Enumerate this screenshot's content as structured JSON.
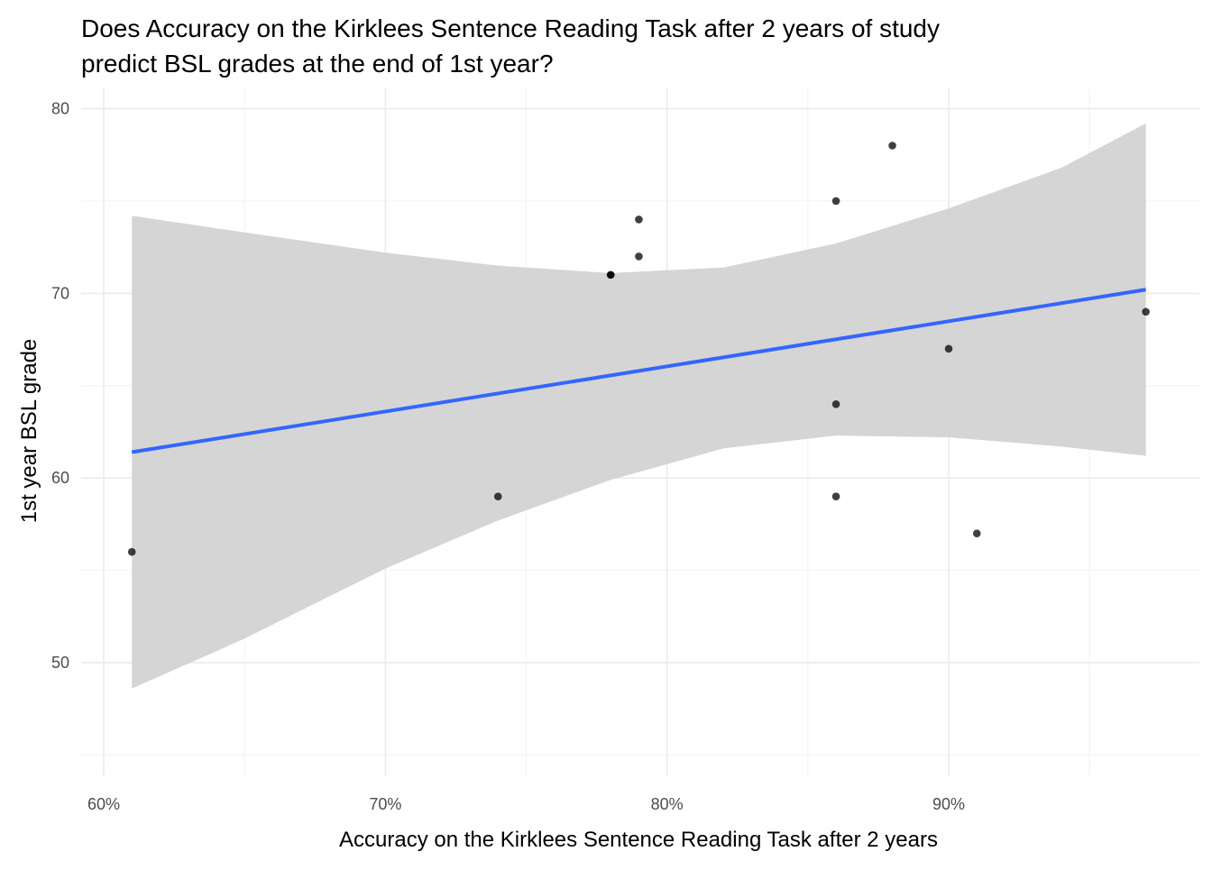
{
  "chart_data": {
    "type": "scatter",
    "title_lines": [
      "Does Accuracy on the Kirklees Sentence Reading Task after 2 years of study",
      "predict BSL grades at the end of 1st year?"
    ],
    "xlabel": "Accuracy on the Kirklees Sentence Reading Task after 2 years",
    "ylabel": "1st year BSL grade",
    "xlim": [
      0.592,
      0.989
    ],
    "ylim": [
      43.9,
      81.1
    ],
    "x_ticks": [
      {
        "value": 0.6,
        "label": "60%"
      },
      {
        "value": 0.7,
        "label": "70%"
      },
      {
        "value": 0.8,
        "label": "80%"
      },
      {
        "value": 0.9,
        "label": "90%"
      }
    ],
    "x_minor_ticks": [
      0.65,
      0.75,
      0.85,
      0.95
    ],
    "y_ticks": [
      {
        "value": 50,
        "label": "50"
      },
      {
        "value": 60,
        "label": "60"
      },
      {
        "value": 70,
        "label": "70"
      },
      {
        "value": 80,
        "label": "80"
      }
    ],
    "y_minor_ticks": [
      45,
      55,
      65,
      75
    ],
    "grid": true,
    "points": [
      {
        "x": 0.61,
        "y": 56
      },
      {
        "x": 0.74,
        "y": 59
      },
      {
        "x": 0.78,
        "y": 71
      },
      {
        "x": 0.78,
        "y": 71
      },
      {
        "x": 0.79,
        "y": 72
      },
      {
        "x": 0.79,
        "y": 74
      },
      {
        "x": 0.86,
        "y": 75
      },
      {
        "x": 0.86,
        "y": 64
      },
      {
        "x": 0.86,
        "y": 59
      },
      {
        "x": 0.88,
        "y": 78
      },
      {
        "x": 0.9,
        "y": 67
      },
      {
        "x": 0.91,
        "y": 57
      },
      {
        "x": 0.97,
        "y": 69
      }
    ],
    "fit": {
      "method": "linear",
      "x_range": [
        0.61,
        0.97
      ],
      "y_at_range": [
        61.4,
        70.2
      ],
      "band_upper": [
        {
          "x": 0.61,
          "y": 74.2
        },
        {
          "x": 0.65,
          "y": 73.3
        },
        {
          "x": 0.7,
          "y": 72.2
        },
        {
          "x": 0.74,
          "y": 71.5
        },
        {
          "x": 0.78,
          "y": 71.1
        },
        {
          "x": 0.82,
          "y": 71.4
        },
        {
          "x": 0.86,
          "y": 72.7
        },
        {
          "x": 0.9,
          "y": 74.6
        },
        {
          "x": 0.94,
          "y": 76.8
        },
        {
          "x": 0.97,
          "y": 79.2
        }
      ],
      "band_lower": [
        {
          "x": 0.61,
          "y": 48.6
        },
        {
          "x": 0.65,
          "y": 51.3
        },
        {
          "x": 0.7,
          "y": 55.1
        },
        {
          "x": 0.74,
          "y": 57.7
        },
        {
          "x": 0.78,
          "y": 59.9
        },
        {
          "x": 0.82,
          "y": 61.6
        },
        {
          "x": 0.86,
          "y": 62.3
        },
        {
          "x": 0.9,
          "y": 62.2
        },
        {
          "x": 0.94,
          "y": 61.7
        },
        {
          "x": 0.97,
          "y": 61.2
        }
      ]
    },
    "colors": {
      "line": "#3366FF",
      "band": "#D3D3D3",
      "points": "#000000"
    }
  }
}
